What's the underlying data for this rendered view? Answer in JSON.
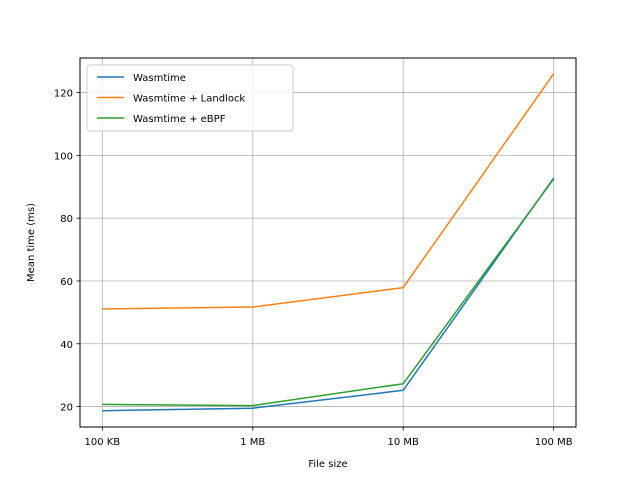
{
  "chart_data": {
    "type": "line",
    "title": "",
    "xlabel": "File size",
    "ylabel": "Mean time (ms)",
    "categories": [
      "100 KB",
      "1 MB",
      "10 MB",
      "100 MB"
    ],
    "ylim": [
      13.5,
      131
    ],
    "yticks": [
      20,
      40,
      60,
      80,
      100,
      120
    ],
    "grid": true,
    "legend_position": "top-left",
    "series": [
      {
        "name": "Wasmtime",
        "color": "#1f77b4",
        "values": [
          18.7,
          19.5,
          25.2,
          92.8
        ]
      },
      {
        "name": "Wasmtime + Landlock",
        "color": "#ff7f0e",
        "values": [
          51.1,
          51.7,
          57.9,
          126.0
        ]
      },
      {
        "name": "Wasmtime + eBPF",
        "color": "#2ca02c",
        "values": [
          20.7,
          20.3,
          27.3,
          92.5
        ]
      }
    ]
  }
}
